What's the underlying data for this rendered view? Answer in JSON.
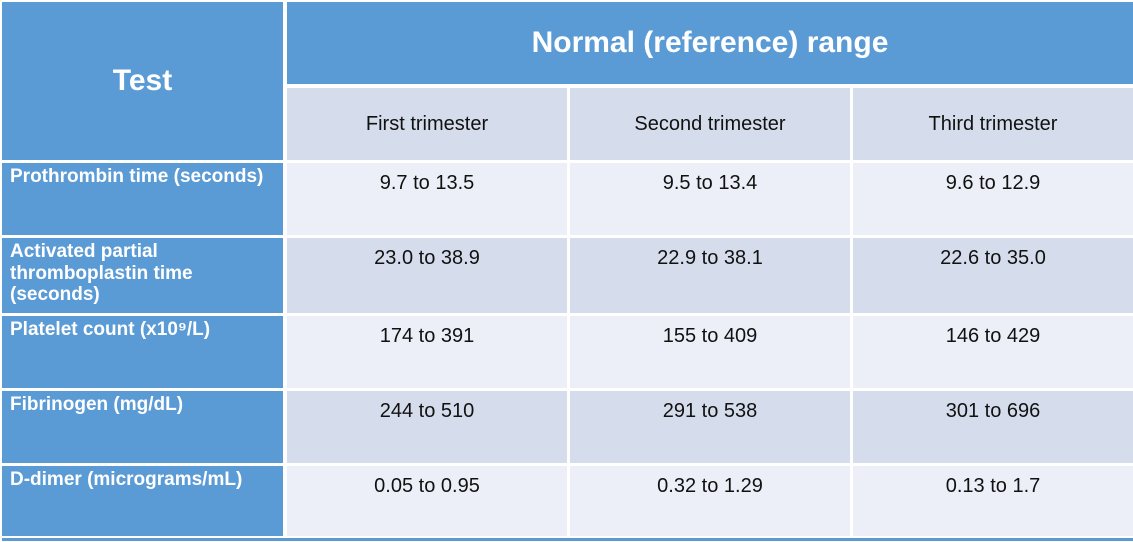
{
  "chart_data": {
    "type": "table",
    "corner_header": "Test",
    "group_header": "Normal (reference) range",
    "columns": [
      "First trimester",
      "Second trimester",
      "Third trimester"
    ],
    "rows": [
      {
        "label": "Prothrombin time (seconds)",
        "values": [
          "9.7 to 13.5",
          "9.5 to 13.4",
          "9.6 to 12.9"
        ]
      },
      {
        "label": "Activated partial thromboplastin time (seconds)",
        "values": [
          "23.0 to 38.9",
          "22.9 to 38.1",
          "22.6 to 35.0"
        ]
      },
      {
        "label": "Platelet count (x10⁹/L)",
        "values": [
          "174 to 391",
          "155 to 409",
          "146 to 429"
        ]
      },
      {
        "label": "Fibrinogen (mg/dL)",
        "values": [
          "244 to 510",
          "291 to 538",
          "301 to 696"
        ]
      },
      {
        "label": "D-dimer (micrograms/mL)",
        "values": [
          "0.05 to 0.95",
          "0.32 to 1.29",
          "0.13 to 1.7"
        ]
      }
    ]
  },
  "colors": {
    "blue": "#5B9BD5",
    "band_light": "#ECEFF7",
    "band_dark": "#D5DDEC",
    "header_text": "#FFFFFF",
    "cell_text": "#111111",
    "gridline": "#FFFFFF"
  }
}
